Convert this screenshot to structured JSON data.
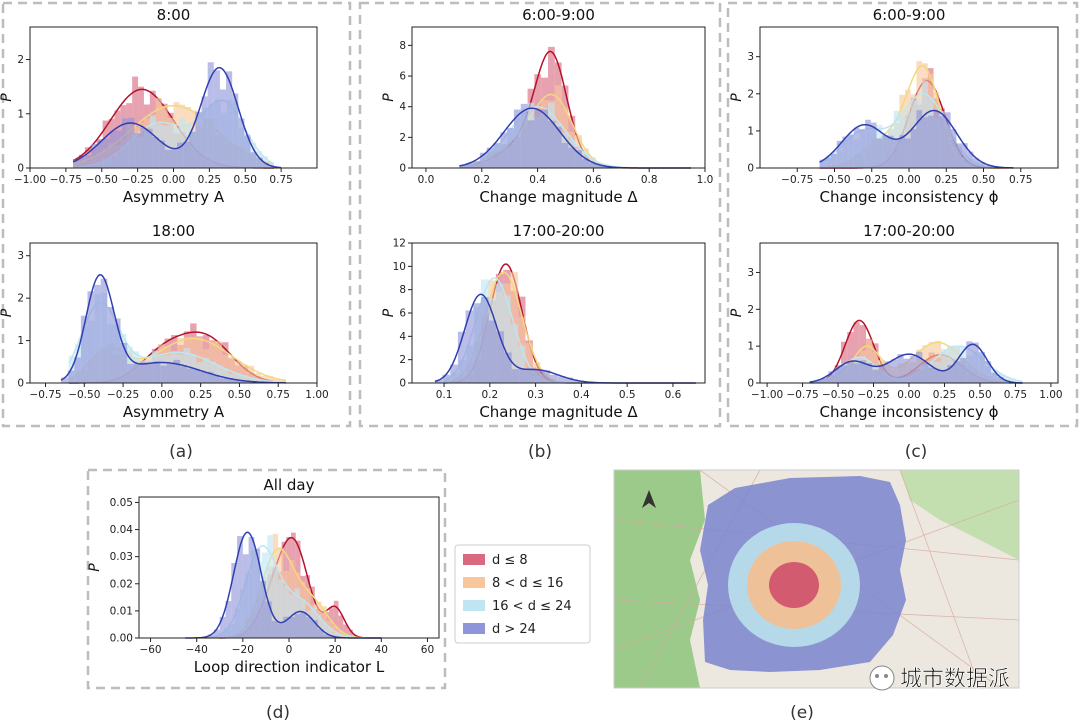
{
  "colors": {
    "red": "#c8102e",
    "orange": "#f5a55a",
    "cyan": "#9ed7ec",
    "blue": "#3b4cc0",
    "red_fill": "#d9697f",
    "orange_fill": "#f7c79b",
    "cyan_fill": "#bfe5f3",
    "blue_fill": "#8e95d8",
    "red_line": "#b5122b",
    "orange_line": "#f2d97c",
    "cyan_line": "#bfe6ee",
    "blue_line": "#2f3fb2",
    "frame": "#bdbdbd"
  },
  "panel_labels": {
    "a": "(a)",
    "b": "(b)",
    "c": "(c)",
    "d": "(d)",
    "e": "(e)"
  },
  "legend": {
    "entries": [
      "d ≤ 8",
      "8 < d ≤ 16",
      "16 < d ≤ 24",
      "d > 24"
    ]
  },
  "watermark": {
    "text": "城市数据派"
  },
  "chart_data": [
    {
      "id": "a1",
      "type": "histogram-kde",
      "title": "8:00",
      "xlabel": "Asymmetry A",
      "ylabel": "P",
      "xlim": [
        -1.0,
        1.0
      ],
      "ylim": [
        0,
        2.6
      ],
      "xticks": [
        "−1.00",
        "−0.75",
        "−0.50",
        "−0.25",
        "0.00",
        "0.25",
        "0.50",
        "0.75"
      ],
      "yticks": [
        "0",
        "1",
        "2"
      ],
      "series": [
        {
          "name": "d ≤ 8",
          "components": [
            [
              -0.22,
              0.22,
              1.0
            ]
          ],
          "peak": 1.45,
          "range": [
            -0.7,
            0.7
          ]
        },
        {
          "name": "8 < d ≤ 16",
          "components": [
            [
              0.0,
              0.3,
              1.0
            ]
          ],
          "peak": 1.15,
          "range": [
            -0.7,
            0.7
          ]
        },
        {
          "name": "16 < d ≤ 24",
          "components": [
            [
              -0.1,
              0.2,
              0.7
            ],
            [
              0.35,
              0.15,
              1.0
            ]
          ],
          "peak": 1.25,
          "range": [
            -0.7,
            0.7
          ]
        },
        {
          "name": "d > 24",
          "components": [
            [
              -0.3,
              0.2,
              0.45
            ],
            [
              0.32,
              0.13,
              1.0
            ]
          ],
          "peak": 1.85,
          "range": [
            -0.7,
            0.75
          ]
        }
      ]
    },
    {
      "id": "a2",
      "type": "histogram-kde",
      "title": "18:00",
      "xlabel": "Asymmetry A",
      "ylabel": "P",
      "xlim": [
        -0.85,
        1.0
      ],
      "ylim": [
        0,
        3.3
      ],
      "xticks": [
        "−0.75",
        "−0.50",
        "−0.25",
        "0.00",
        "0.25",
        "0.50",
        "0.75",
        "1.00"
      ],
      "yticks": [
        "0",
        "1",
        "2",
        "3"
      ],
      "series": [
        {
          "name": "d ≤ 8",
          "components": [
            [
              0.0,
              0.15,
              0.6
            ],
            [
              0.28,
              0.17,
              1.0
            ]
          ],
          "peak": 1.2,
          "range": [
            -0.6,
            0.8
          ]
        },
        {
          "name": "8 < d ≤ 16",
          "components": [
            [
              -0.35,
              0.12,
              0.7
            ],
            [
              0.2,
              0.25,
              1.0
            ]
          ],
          "peak": 1.05,
          "range": [
            -0.6,
            0.8
          ]
        },
        {
          "name": "16 < d ≤ 24",
          "components": [
            [
              -0.4,
              0.12,
              1.0
            ],
            [
              0.1,
              0.25,
              0.4
            ]
          ],
          "peak": 1.9,
          "range": [
            -0.6,
            0.8
          ]
        },
        {
          "name": "d > 24",
          "components": [
            [
              -0.4,
              0.09,
              1.0
            ],
            [
              0.0,
              0.25,
              0.2
            ]
          ],
          "peak": 2.55,
          "range": [
            -0.65,
            0.8
          ]
        }
      ]
    },
    {
      "id": "b1",
      "type": "histogram-kde",
      "title": "6:00-9:00",
      "xlabel": "Change magnitude Δ",
      "ylabel": "P",
      "xlim": [
        -0.05,
        1.0
      ],
      "ylim": [
        0,
        9.2
      ],
      "xticks": [
        "0.0",
        "0.2",
        "0.4",
        "0.6",
        "0.8",
        "1.0"
      ],
      "yticks": [
        "0",
        "2",
        "4",
        "6",
        "8"
      ],
      "series": [
        {
          "name": "d ≤ 8",
          "components": [
            [
              0.45,
              0.055,
              1.0
            ],
            [
              0.38,
              0.1,
              0.3
            ]
          ],
          "peak": 7.6,
          "range": [
            0.12,
            0.95
          ]
        },
        {
          "name": "8 < d ≤ 16",
          "components": [
            [
              0.46,
              0.07,
              1.0
            ],
            [
              0.35,
              0.1,
              0.4
            ]
          ],
          "peak": 4.8,
          "range": [
            0.12,
            0.95
          ]
        },
        {
          "name": "16 < d ≤ 24",
          "components": [
            [
              0.4,
              0.1,
              1.0
            ]
          ],
          "peak": 4.0,
          "range": [
            0.12,
            0.95
          ]
        },
        {
          "name": "d > 24",
          "components": [
            [
              0.38,
              0.1,
              1.0
            ]
          ],
          "peak": 3.9,
          "range": [
            0.12,
            0.95
          ]
        }
      ]
    },
    {
      "id": "b2",
      "type": "histogram-kde",
      "title": "17:00-20:00",
      "xlabel": "Change magnitude Δ",
      "ylabel": "P",
      "xlim": [
        0.03,
        0.67
      ],
      "ylim": [
        0,
        12
      ],
      "xticks": [
        "0.1",
        "0.2",
        "0.3",
        "0.4",
        "0.5",
        "0.6"
      ],
      "yticks": [
        "0",
        "2",
        "4",
        "6",
        "8",
        "10",
        "12"
      ],
      "series": [
        {
          "name": "d ≤ 8",
          "components": [
            [
              0.235,
              0.035,
              1.0
            ]
          ],
          "peak": 10.2,
          "range": [
            0.1,
            0.65
          ]
        },
        {
          "name": "8 < d ≤ 16",
          "components": [
            [
              0.23,
              0.04,
              1.0
            ]
          ],
          "peak": 9.5,
          "range": [
            0.1,
            0.65
          ]
        },
        {
          "name": "16 < d ≤ 24",
          "components": [
            [
              0.21,
              0.04,
              1.0
            ]
          ],
          "peak": 9.0,
          "range": [
            0.1,
            0.65
          ]
        },
        {
          "name": "d > 24",
          "components": [
            [
              0.18,
              0.035,
              1.0
            ],
            [
              0.3,
              0.05,
              0.15
            ]
          ],
          "peak": 7.6,
          "range": [
            0.08,
            0.65
          ]
        }
      ]
    },
    {
      "id": "c1",
      "type": "histogram-kde",
      "title": "6:00-9:00",
      "xlabel": "Change inconsistency ϕ",
      "ylabel": "P",
      "xlim": [
        -1.0,
        1.0
      ],
      "ylim": [
        0,
        3.8
      ],
      "xticks": [
        "−0.75",
        "−0.50",
        "−0.25",
        "0.00",
        "0.25",
        "0.50",
        "0.75"
      ],
      "yticks": [
        "0",
        "1",
        "2",
        "3"
      ],
      "series": [
        {
          "name": "d ≤ 8",
          "components": [
            [
              0.12,
              0.12,
              1.0
            ]
          ],
          "peak": 2.35,
          "range": [
            -0.6,
            0.7
          ]
        },
        {
          "name": "8 < d ≤ 16",
          "components": [
            [
              0.1,
              0.11,
              1.0
            ],
            [
              -0.15,
              0.15,
              0.3
            ]
          ],
          "peak": 2.75,
          "range": [
            -0.6,
            0.7
          ]
        },
        {
          "name": "16 < d ≤ 24",
          "components": [
            [
              0.1,
              0.15,
              1.0
            ],
            [
              -0.3,
              0.15,
              0.5
            ]
          ],
          "peak": 2.0,
          "range": [
            -0.6,
            0.7
          ]
        },
        {
          "name": "d > 24",
          "components": [
            [
              -0.3,
              0.15,
              0.75
            ],
            [
              0.17,
              0.15,
              1.0
            ]
          ],
          "peak": 1.55,
          "range": [
            -0.6,
            0.7
          ]
        }
      ]
    },
    {
      "id": "c2",
      "type": "histogram-kde",
      "title": "17:00-20:00",
      "xlabel": "Change inconsistency ϕ",
      "ylabel": "P",
      "xlim": [
        -1.05,
        1.05
      ],
      "ylim": [
        0,
        3.8
      ],
      "xticks": [
        "−1.00",
        "−0.75",
        "−0.50",
        "−0.25",
        "0.00",
        "0.25",
        "0.50",
        "0.75",
        "1.00"
      ],
      "yticks": [
        "0",
        "1",
        "2",
        "3"
      ],
      "series": [
        {
          "name": "d ≤ 8",
          "components": [
            [
              -0.35,
              0.1,
              1.0
            ],
            [
              0.22,
              0.15,
              0.45
            ]
          ],
          "peak": 1.7,
          "range": [
            -0.7,
            0.8
          ]
        },
        {
          "name": "8 < d ≤ 16",
          "components": [
            [
              -0.3,
              0.1,
              0.8
            ],
            [
              0.2,
              0.18,
              0.9
            ]
          ],
          "peak": 1.1,
          "range": [
            -0.7,
            0.8
          ]
        },
        {
          "name": "16 < d ≤ 24",
          "components": [
            [
              -0.35,
              0.12,
              0.7
            ],
            [
              0.35,
              0.18,
              1.0
            ]
          ],
          "peak": 1.0,
          "range": [
            -0.7,
            0.8
          ]
        },
        {
          "name": "d > 24",
          "components": [
            [
              -0.4,
              0.12,
              0.55
            ],
            [
              0.0,
              0.15,
              0.75
            ],
            [
              0.45,
              0.1,
              1.0
            ]
          ],
          "peak": 1.05,
          "range": [
            -0.7,
            0.8
          ]
        }
      ]
    },
    {
      "id": "d1",
      "type": "histogram-kde",
      "title": "All day",
      "xlabel": "Loop direction indicator L",
      "ylabel": "P",
      "xlim": [
        -65,
        65
      ],
      "ylim": [
        0,
        0.052
      ],
      "xticks": [
        "−60",
        "−40",
        "−20",
        "0",
        "20",
        "40",
        "60"
      ],
      "yticks": [
        "0.00",
        "0.01",
        "0.02",
        "0.03",
        "0.04",
        "0.05"
      ],
      "series": [
        {
          "name": "d ≤ 8",
          "components": [
            [
              2,
              6.5,
              1.0
            ],
            [
              20,
              4,
              0.32
            ],
            [
              -8,
              6,
              0.3
            ]
          ],
          "peak": 0.037,
          "range": [
            -30,
            40
          ]
        },
        {
          "name": "8 < d ≤ 16",
          "components": [
            [
              -5,
              7,
              1.0
            ],
            [
              10,
              7,
              0.4
            ]
          ],
          "peak": 0.033,
          "range": [
            -40,
            40
          ]
        },
        {
          "name": "16 < d ≤ 24",
          "components": [
            [
              -12,
              7,
              1.0
            ],
            [
              5,
              8,
              0.4
            ]
          ],
          "peak": 0.034,
          "range": [
            -40,
            40
          ]
        },
        {
          "name": "d > 24",
          "components": [
            [
              -18,
              6,
              1.0
            ],
            [
              5,
              6,
              0.25
            ]
          ],
          "peak": 0.039,
          "range": [
            -45,
            40
          ]
        }
      ]
    }
  ]
}
